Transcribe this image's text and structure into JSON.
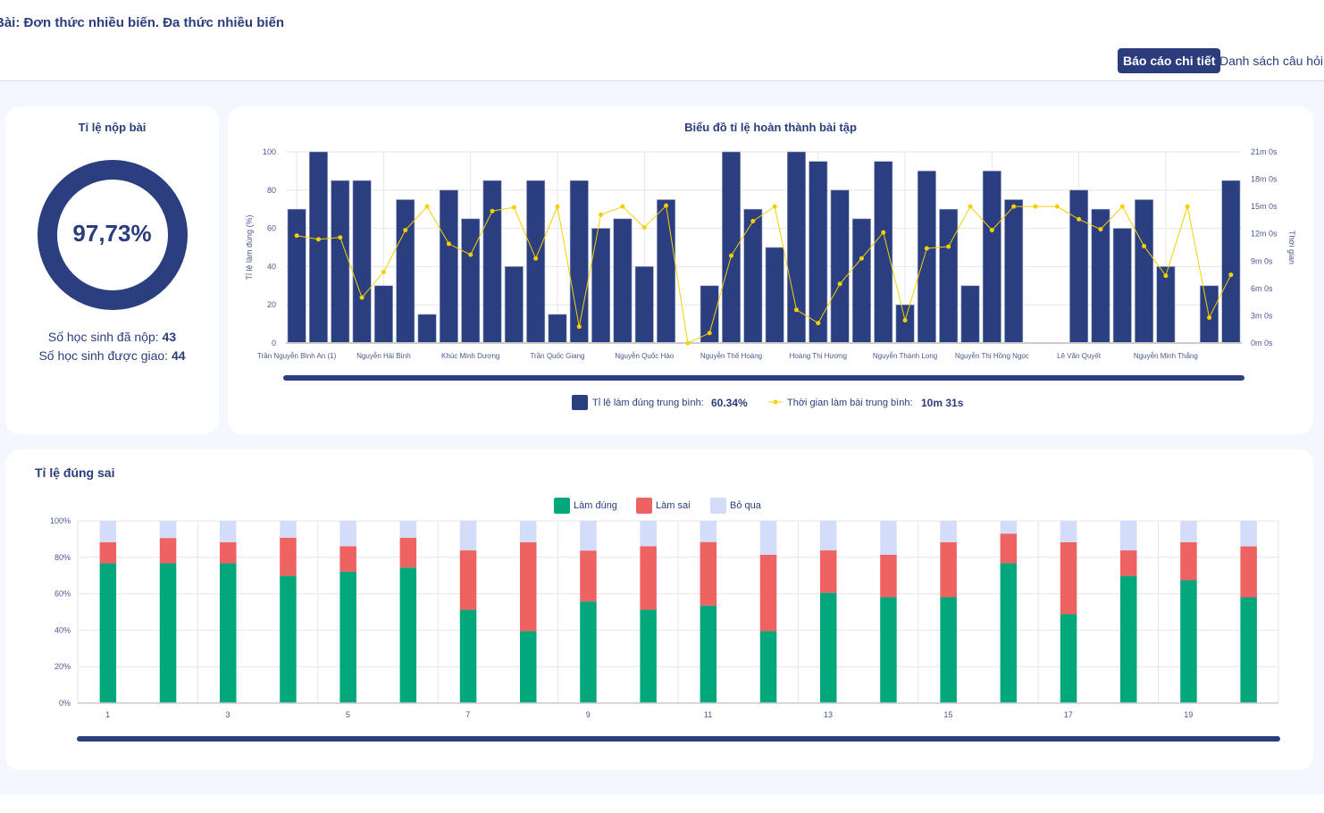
{
  "header": {
    "title": "Bài: Đơn thức nhiều biến. Đa thức nhiều biến",
    "tabs": [
      {
        "label": "Báo cáo chi tiết",
        "active": true
      },
      {
        "label": "Danh sách câu hỏi",
        "active": false
      }
    ]
  },
  "submission": {
    "title": "Tỉ lệ nộp bài",
    "percent_label": "97,73%",
    "percent": 97.73,
    "submitted_label": "Số học sinh đã nộp:",
    "submitted": "43",
    "assigned_label": "Số học sinh được giao:",
    "assigned": "44",
    "color": "#2b3f80"
  },
  "chart_data": [
    {
      "type": "bar",
      "title": "Biểu đồ tỉ lệ hoàn thành bài tập",
      "ylabel": "Tỉ lệ làm đúng (%)",
      "y2label": "Thời gian",
      "ylim": [
        0,
        100
      ],
      "y2lim_minutes": [
        0,
        21
      ],
      "yticks": [
        "0",
        "20",
        "40",
        "60",
        "80",
        "100"
      ],
      "y2ticks": [
        "0m 0s",
        "3m 0s",
        "6m 0s",
        "9m 0s",
        "12m 0s",
        "15m 0s",
        "18m 0s",
        "21m 0s"
      ],
      "categories": [
        "Trần Nguyễn Bình An (1)",
        "",
        "",
        "",
        "Nguyễn Hải Bình",
        "",
        "",
        "",
        "Khúc Minh Dương",
        "",
        "",
        "",
        "Trần Quốc Giang",
        "",
        "",
        "",
        "Nguyễn Quốc Hào",
        "",
        "",
        "",
        "Nguyễn Thế Hoàng",
        "",
        "",
        "",
        "Hoàng Thị Hương",
        "",
        "",
        "",
        "Nguyễn Thành Long",
        "",
        "",
        "",
        "Nguyễn Thị Hồng Ngọc",
        "",
        "",
        "",
        "Lê Văn Quyết",
        "",
        "",
        "",
        "Nguyễn Minh Thắng",
        "",
        "",
        ""
      ],
      "series": [
        {
          "name": "Tỉ lệ làm đúng trung bình:",
          "type": "bar",
          "color": "#2b3f80",
          "values": [
            70,
            100,
            85,
            85,
            30,
            75,
            15,
            80,
            65,
            85,
            40,
            85,
            15,
            85,
            60,
            65,
            40,
            75,
            0,
            30,
            100,
            70,
            50,
            100,
            95,
            80,
            65,
            95,
            20,
            90,
            70,
            30,
            90,
            75,
            0,
            0,
            80,
            70,
            60,
            75,
            40,
            0,
            30,
            85
          ]
        },
        {
          "name": "Thời gian làm bài trung bình:",
          "type": "line",
          "color": "#f5d000",
          "unit": "minutes",
          "values": [
            11.8,
            11.4,
            11.6,
            5.0,
            7.8,
            12.4,
            15.0,
            10.9,
            9.7,
            14.5,
            14.9,
            9.3,
            15.0,
            1.8,
            14.1,
            15.0,
            12.7,
            15.1,
            0,
            1.1,
            9.6,
            13.4,
            15.0,
            3.65,
            2.2,
            6.5,
            9.3,
            12.15,
            2.5,
            10.4,
            10.6,
            15.0,
            12.4,
            15.0,
            15.0,
            15.0,
            13.6,
            12.5,
            15.0,
            10.65,
            7.4,
            15.0,
            2.8,
            7.5
          ]
        }
      ],
      "legend": [
        {
          "label": "Tỉ lệ làm đúng trung bình:",
          "value": "60.34%"
        },
        {
          "label": "Thời gian làm bài trung bình:",
          "value": "10m 31s"
        }
      ],
      "legend_position": "bottom",
      "grid": true
    },
    {
      "type": "bar",
      "stacked": true,
      "title": "Tỉ lệ đúng sai",
      "ylim": [
        0,
        100
      ],
      "yticks": [
        "0%",
        "20%",
        "40%",
        "60%",
        "80%",
        "100%"
      ],
      "categories": [
        "1",
        "2",
        "3",
        "4",
        "5",
        "6",
        "7",
        "8",
        "9",
        "10",
        "11",
        "12",
        "13",
        "14",
        "15",
        "16",
        "17",
        "18",
        "19",
        "20"
      ],
      "xtick_labels": [
        "1",
        "",
        "3",
        "",
        "5",
        "",
        "7",
        "",
        "9",
        "",
        "11",
        "",
        "13",
        "",
        "15",
        "",
        "17",
        "",
        "19",
        ""
      ],
      "series": [
        {
          "name": "Làm đúng",
          "color": "#02a87c",
          "values": [
            76.7,
            76.7,
            76.7,
            69.8,
            72.1,
            74.4,
            51.2,
            39.5,
            55.8,
            51.2,
            53.5,
            39.5,
            60.5,
            58.1,
            58.1,
            76.7,
            48.8,
            69.8,
            67.4,
            58.1
          ]
        },
        {
          "name": "Làm sai",
          "color": "#ee6262",
          "values": [
            11.6,
            13.9,
            11.6,
            20.9,
            14.0,
            16.3,
            32.6,
            48.8,
            27.9,
            34.9,
            34.9,
            41.9,
            23.3,
            23.3,
            30.2,
            16.3,
            39.5,
            14.0,
            20.9,
            27.9
          ]
        },
        {
          "name": "Bỏ qua",
          "color": "#d3dcf8",
          "values": [
            11.6,
            9.3,
            11.6,
            9.3,
            14.0,
            9.3,
            16.3,
            11.6,
            16.3,
            14.0,
            11.6,
            18.6,
            16.3,
            18.6,
            11.6,
            7.0,
            11.6,
            16.3,
            11.6,
            14.0
          ]
        }
      ],
      "legend_position": "top",
      "grid": true
    }
  ]
}
